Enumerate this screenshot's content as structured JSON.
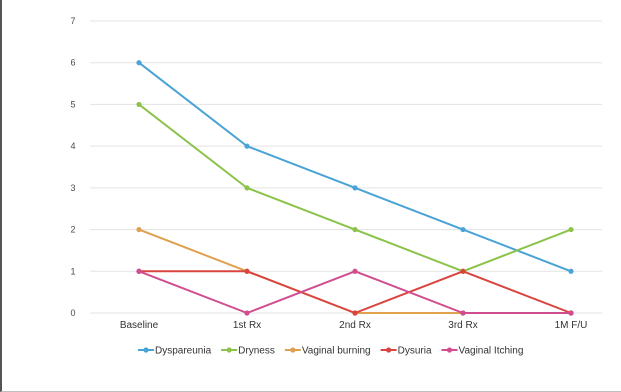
{
  "chart_data": {
    "type": "line",
    "title": "",
    "xlabel": "",
    "ylabel": "",
    "categories": [
      "Baseline",
      "1st Rx",
      "2nd Rx",
      "3rd Rx",
      "1M F/U"
    ],
    "ylim": [
      0,
      7
    ],
    "yticks": [
      "0",
      "1",
      "2",
      "3",
      "4",
      "5",
      "6",
      "7"
    ],
    "grid": true,
    "legend_position": "bottom",
    "series": [
      {
        "name": "Dyspareunia",
        "color": "#4aa3d6",
        "values": [
          6,
          4,
          3,
          2,
          1
        ]
      },
      {
        "name": "Dryness",
        "color": "#8bc34a",
        "values": [
          5,
          3,
          2,
          1,
          2
        ]
      },
      {
        "name": "Vaginal burning",
        "color": "#e0a050",
        "values": [
          2,
          1,
          0,
          0,
          0
        ]
      },
      {
        "name": "Dysuria",
        "color": "#d9443f",
        "values": [
          1,
          1,
          0,
          1,
          0
        ]
      },
      {
        "name": "Vaginal Itching",
        "color": "#d04d8f",
        "values": [
          1,
          0,
          1,
          0,
          0
        ]
      }
    ]
  }
}
